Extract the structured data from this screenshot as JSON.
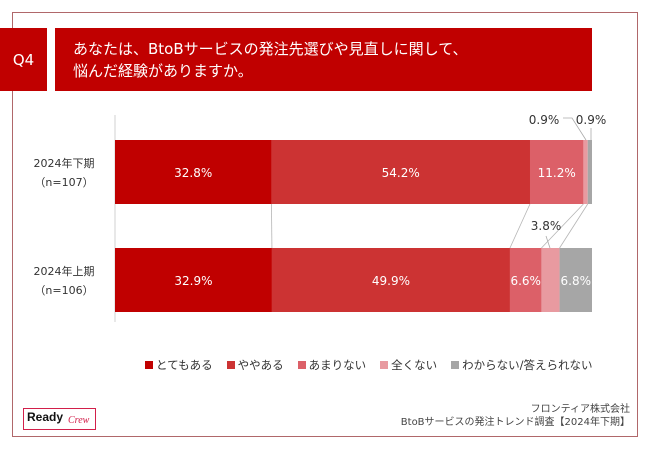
{
  "question": {
    "number": "Q4",
    "text_line1": "あなたは、BtoBサービスの発注先選びや見直しに関して、",
    "text_line2": "悩んだ経験がありますか。"
  },
  "chart_data": {
    "type": "bar",
    "orientation": "horizontal",
    "stacked": true,
    "normalized_percent": true,
    "categories": [
      {
        "label": "2024年下期",
        "n": "（n=107）"
      },
      {
        "label": "2024年上期",
        "n": "（n=106）"
      }
    ],
    "series": [
      {
        "name": "とてもある",
        "color": "#c00000",
        "values": [
          32.8,
          32.9
        ],
        "labels": [
          "32.8%",
          "32.9%"
        ]
      },
      {
        "name": "ややある",
        "color": "#cc3333",
        "values": [
          54.2,
          49.9
        ],
        "labels": [
          "54.2%",
          "49.9%"
        ]
      },
      {
        "name": "あまりない",
        "color": "#dc6068",
        "values": [
          11.2,
          6.6
        ],
        "labels": [
          "11.2%",
          "6.6%"
        ]
      },
      {
        "name": "全くない",
        "color": "#e89aa0",
        "values": [
          0.9,
          3.8
        ],
        "labels": [
          "0.9%",
          "3.8%"
        ]
      },
      {
        "name": "わからない/答えられない",
        "color": "#a6a6a6",
        "values": [
          0.9,
          6.8
        ],
        "labels": [
          "0.9%",
          "6.8%"
        ]
      }
    ],
    "xlim": [
      0,
      100
    ],
    "legend_position": "bottom"
  },
  "footer": {
    "company": "フロンティア株式会社",
    "survey": "BtoBサービスの発注トレンド調査【2024年下期】"
  },
  "logo": {
    "text_main": "Ready",
    "text_sub": "Crew",
    "accent": "#d21f4a"
  }
}
